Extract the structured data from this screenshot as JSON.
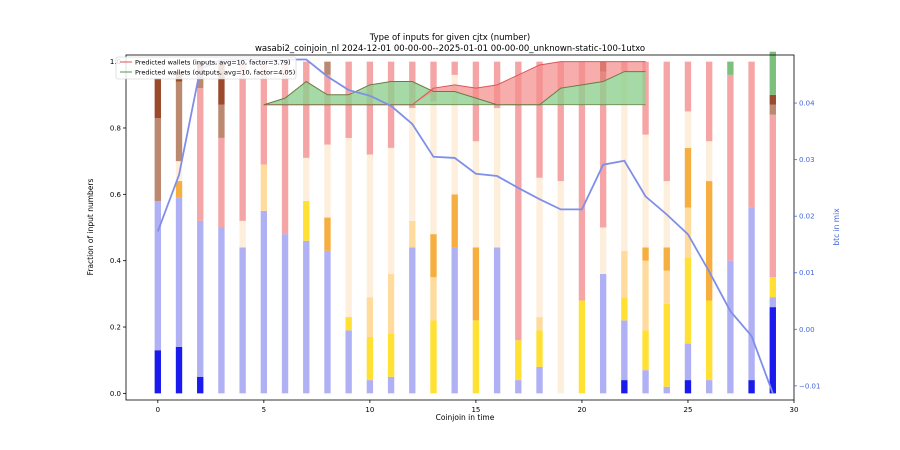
{
  "chart_data": {
    "type": "bar",
    "title": "Type of inputs for given cjtx (number)",
    "subtitle": "wasabi2_coinjoin_nl 2024-12-01 00-00-00--2025-01-01 00-00-00_unknown-static-100-1utxo",
    "xlabel": "Coinjoin in time",
    "ylabel": "Fraction of input numbers",
    "y2label": "btc in mix",
    "xlim": [
      -1.5,
      30
    ],
    "ylim": [
      -0.02,
      1.02
    ],
    "y2lim": [
      -0.0125,
      0.0485
    ],
    "xticks": [
      0,
      5,
      10,
      15,
      20,
      25,
      30
    ],
    "yticks": [
      0.0,
      0.2,
      0.4,
      0.6,
      0.8,
      1.0
    ],
    "y2ticks": [
      -0.01,
      0.0,
      0.01,
      0.02,
      0.03,
      0.04
    ],
    "xtick_labels": [
      "0",
      "5",
      "10",
      "15",
      "20",
      "25",
      "30"
    ],
    "ytick_labels": [
      "0.0",
      "0.2",
      "0.4",
      "0.6",
      "0.8",
      "1.0"
    ],
    "y2tick_labels": [
      "−0.01",
      "0.00",
      "0.01",
      "0.02",
      "0.03",
      "0.04"
    ],
    "colors": {
      "blue_dark": "#1a1aee",
      "blue_light": "#b0b0f5",
      "yellow": "#ffe033",
      "yellow_light": "#ffdc9e",
      "orange": "#f7ae40",
      "cream": "#fdefdb",
      "pink": "#f5a5a5",
      "brown": "#bb8870",
      "brown_dark": "#9b4a2c",
      "green": "#7dbf7d",
      "line_blue": "#7f8fe8",
      "inputs_fill": "#f58a8a",
      "inputs_line": "#e05555",
      "outputs_fill": "#8fd08f",
      "outputs_line": "#6b7a45",
      "axis_blue": "#4466dd"
    },
    "segment_colors": [
      "blue_dark",
      "blue_light",
      "yellow",
      "yellow_light",
      "orange",
      "cream",
      "pink",
      "brown",
      "brown_dark",
      "green"
    ],
    "bars": [
      [
        0.13,
        0.45,
        0,
        0,
        0,
        0,
        0,
        0.25,
        0.12,
        0
      ],
      [
        0.14,
        0.45,
        0,
        0,
        0.05,
        0.06,
        0,
        0.24,
        0.03,
        0
      ],
      [
        0.05,
        0.47,
        0,
        0,
        0,
        0,
        0.4,
        0.04,
        0.04,
        0
      ],
      [
        0,
        0.5,
        0,
        0,
        0,
        0,
        0.27,
        0.1,
        0.13,
        0
      ],
      [
        0,
        0.44,
        0,
        0,
        0,
        0.08,
        0.48,
        0,
        0,
        0
      ],
      [
        0,
        0.55,
        0,
        0.14,
        0,
        0,
        0.31,
        0,
        0,
        0
      ],
      [
        0,
        0.48,
        0,
        0,
        0,
        0,
        0.52,
        0,
        0,
        0
      ],
      [
        0,
        0.46,
        0.12,
        0,
        0,
        0.13,
        0.29,
        0,
        0,
        0
      ],
      [
        0,
        0.43,
        0,
        0,
        0.1,
        0.22,
        0.21,
        0.04,
        0,
        0
      ],
      [
        0,
        0.19,
        0.04,
        0,
        0,
        0.54,
        0.23,
        0,
        0,
        0
      ],
      [
        0,
        0.04,
        0.13,
        0.12,
        0,
        0.43,
        0.28,
        0,
        0,
        0
      ],
      [
        0,
        0.05,
        0.13,
        0.18,
        0,
        0.38,
        0.26,
        0,
        0,
        0
      ],
      [
        0,
        0.44,
        0,
        0.08,
        0,
        0.34,
        0.14,
        0,
        0,
        0
      ],
      [
        0,
        0,
        0.22,
        0.13,
        0.13,
        0.4,
        0.12,
        0,
        0,
        0
      ],
      [
        0,
        0.44,
        0,
        0,
        0.16,
        0.36,
        0.04,
        0,
        0,
        0
      ],
      [
        0,
        0,
        0.22,
        0,
        0.22,
        0.32,
        0.24,
        0,
        0,
        0
      ],
      [
        0,
        0.44,
        0,
        0,
        0,
        0.42,
        0.14,
        0,
        0,
        0
      ],
      [
        0,
        0.04,
        0.12,
        0,
        0,
        0,
        0.84,
        0,
        0,
        0
      ],
      [
        0,
        0.08,
        0.11,
        0.04,
        0,
        0.42,
        0.35,
        0,
        0,
        0
      ],
      [
        0,
        0,
        0,
        0,
        0,
        0.64,
        0.36,
        0,
        0,
        0
      ],
      [
        0,
        0,
        0.28,
        0,
        0,
        0,
        0.72,
        0,
        0,
        0
      ],
      [
        0,
        0.36,
        0,
        0,
        0,
        0.14,
        0.44,
        0.03,
        0.03,
        0
      ],
      [
        0.04,
        0.18,
        0.07,
        0.14,
        0,
        0.54,
        0.03,
        0,
        0,
        0
      ],
      [
        0,
        0.07,
        0.12,
        0.21,
        0.04,
        0.34,
        0.22,
        0,
        0,
        0
      ],
      [
        0,
        0.02,
        0.25,
        0.1,
        0.07,
        0.2,
        0.36,
        0,
        0,
        0
      ],
      [
        0.04,
        0.11,
        0.26,
        0.15,
        0.18,
        0.11,
        0.15,
        0,
        0,
        0
      ],
      [
        0,
        0.04,
        0.24,
        0,
        0.36,
        0.12,
        0.24,
        0,
        0,
        0
      ],
      [
        0,
        0.4,
        0,
        0,
        0,
        0,
        0.56,
        0,
        0,
        0.04
      ],
      [
        0.04,
        0.52,
        0,
        0,
        0,
        0,
        0.44,
        0,
        0,
        0
      ],
      [
        0.26,
        0.03,
        0.06,
        0,
        0,
        0,
        0.49,
        0.03,
        0.03,
        0.13
      ]
    ],
    "btc_in_mix": [
      [
        0,
        0.0173
      ],
      [
        1,
        0.0273
      ],
      [
        2,
        0.046
      ],
      [
        3,
        0.0477
      ],
      [
        4,
        0.0477
      ],
      [
        5,
        0.0477
      ],
      [
        6,
        0.0477
      ],
      [
        7,
        0.0477
      ],
      [
        8,
        0.0447
      ],
      [
        9,
        0.0423
      ],
      [
        10,
        0.0413
      ],
      [
        11,
        0.0395
      ],
      [
        12,
        0.0363
      ],
      [
        13,
        0.0305
      ],
      [
        14,
        0.0303
      ],
      [
        15,
        0.0275
      ],
      [
        16,
        0.0271
      ],
      [
        17,
        0.025
      ],
      [
        18,
        0.023
      ],
      [
        19,
        0.0212
      ],
      [
        20,
        0.0212
      ],
      [
        21,
        0.0291
      ],
      [
        22,
        0.0298
      ],
      [
        23,
        0.0235
      ],
      [
        24,
        0.0203
      ],
      [
        25,
        0.0168
      ],
      [
        26,
        0.0102
      ],
      [
        27,
        0.0032
      ],
      [
        28,
        -0.0012
      ],
      [
        29,
        -0.0113
      ]
    ],
    "series": [
      {
        "name": "Predicted wallets (inputs, avg=10, factor=3.79)",
        "x": [
          5,
          6,
          7,
          8,
          9,
          10,
          11,
          12,
          13,
          14,
          15,
          16,
          17,
          18,
          19,
          20,
          21,
          22,
          23
        ],
        "avg_line": 0.87,
        "values": [
          0.87,
          0.87,
          0.87,
          0.87,
          0.87,
          0.87,
          0.87,
          0.87,
          0.92,
          0.93,
          0.92,
          0.93,
          0.96,
          0.99,
          1.0,
          1.0,
          1.0,
          1.0,
          1.0
        ],
        "fill_to": [
          0.87,
          0.87,
          0.87,
          0.87,
          0.87,
          0.87,
          0.87,
          0.87,
          0.91,
          0.91,
          0.89,
          0.87,
          0.87,
          0.87,
          0.92,
          0.93,
          0.94,
          0.97,
          0.97
        ]
      },
      {
        "name": "Predicted wallets (outputs, avg=10, factor=4.05)",
        "x": [
          5,
          6,
          7,
          8,
          9,
          10,
          11,
          12,
          13,
          14,
          15,
          16,
          17,
          18,
          19,
          20,
          21,
          22,
          23
        ],
        "values": [
          0.87,
          0.89,
          0.94,
          0.9,
          0.9,
          0.93,
          0.94,
          0.94,
          0.91,
          0.91,
          0.89,
          0.87,
          0.87,
          0.87,
          0.92,
          0.93,
          0.94,
          0.97,
          0.97
        ]
      }
    ]
  }
}
